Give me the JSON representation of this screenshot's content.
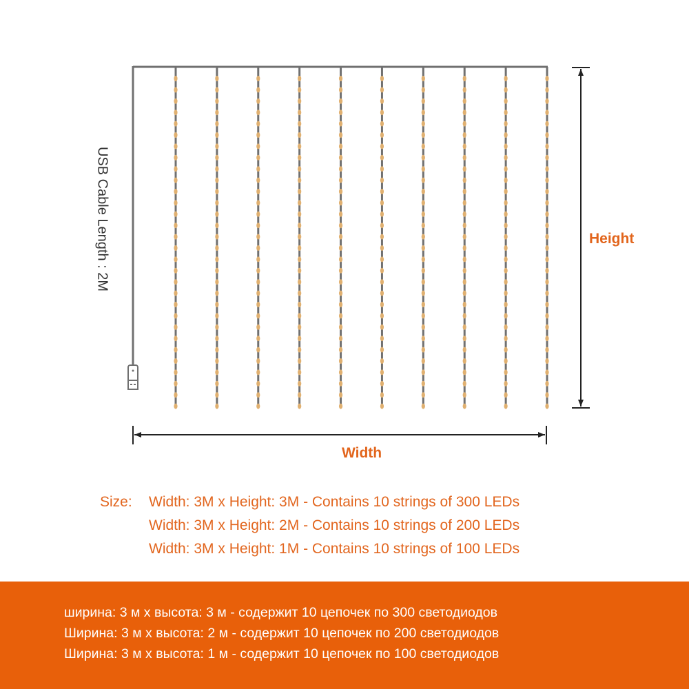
{
  "colors": {
    "accent": "#e2651c",
    "banner": "#e8600a",
    "wire": "#707070",
    "led": "#e0b070"
  },
  "labels": {
    "usb_cable": "USB Cable Length : 2M",
    "height": "Height",
    "width": "Width"
  },
  "strings_count": 10,
  "sizes": {
    "prefix": "Size:",
    "rows": [
      "Width: 3M x Height: 3M - Contains 10 strings of 300 LEDs",
      "Width: 3M x Height: 2M - Contains 10 strings of 200 LEDs",
      "Width: 3M x Height: 1M - Contains 10 strings of 100 LEDs"
    ]
  },
  "banner": {
    "rows": [
      "ширина: 3 м x высота: 3 м - содержит 10 цепочек по 300 светодиодов",
      "Ширина: 3 м x высота: 2 м - содержит 10 цепочек по 200 светодиодов",
      "Ширина: 3 м x высота: 1 м - содержит 10 цепочек по 100 светодиодов"
    ]
  }
}
